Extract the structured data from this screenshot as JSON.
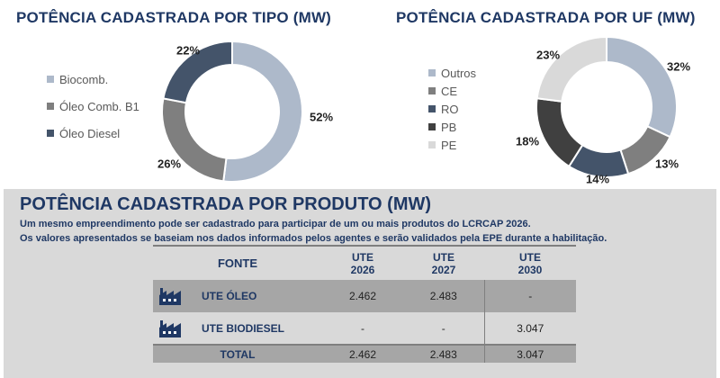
{
  "colors": {
    "navy": "#1f3864",
    "biocomb": "#adb9ca",
    "oleo_b1": "#7f7f7f",
    "oleo_diesel": "#44546a",
    "outros": "#adb9ca",
    "ce": "#7f7f7f",
    "ro": "#44546a",
    "pb": "#404040",
    "pe": "#d9d9d9"
  },
  "chart_data": [
    {
      "type": "pie",
      "title": "POTÊNCIA CADASTRADA POR TIPO (MW)",
      "categories": [
        "Biocomb.",
        "Óleo Comb. B1",
        "Óleo Diesel"
      ],
      "values": [
        52,
        26,
        22
      ],
      "labels": [
        "52%",
        "26%",
        "22%"
      ],
      "legend_position": "left",
      "donut": true
    },
    {
      "type": "pie",
      "title": "POTÊNCIA CADASTRADA POR UF (MW)",
      "categories": [
        "Outros",
        "CE",
        "RO",
        "PB",
        "PE"
      ],
      "values": [
        32,
        13,
        14,
        18,
        23
      ],
      "labels": [
        "32%",
        "13%",
        "14%",
        "18%",
        "23%"
      ],
      "legend_position": "left",
      "donut": true
    }
  ],
  "product": {
    "title": "POTÊNCIA CADASTRADA POR PRODUTO (MW)",
    "note1": "Um mesmo empreendimento pode ser cadastrado para participar de um ou mais produtos do LCRCAP 2026.",
    "note2": "Os valores apresentados se baseiam nos dados informados pelos agentes e serão validados pela EPE durante a habilitação.",
    "headers": {
      "fonte": "FONTE",
      "c1a": "UTE",
      "c1b": "2026",
      "c2a": "UTE",
      "c2b": "2027",
      "c3a": "UTE",
      "c3b": "2030"
    },
    "rows": [
      {
        "name": "UTE ÓLEO",
        "v2026": "2.462",
        "v2027": "2.483",
        "v2030": "-",
        "icon": "factory-icon"
      },
      {
        "name": "UTE BIODIESEL",
        "v2026": "-",
        "v2027": "-",
        "v2030": "3.047",
        "icon": "factory-icon"
      }
    ],
    "total": {
      "name": "TOTAL",
      "v2026": "2.462",
      "v2027": "2.483",
      "v2030": "3.047"
    }
  }
}
